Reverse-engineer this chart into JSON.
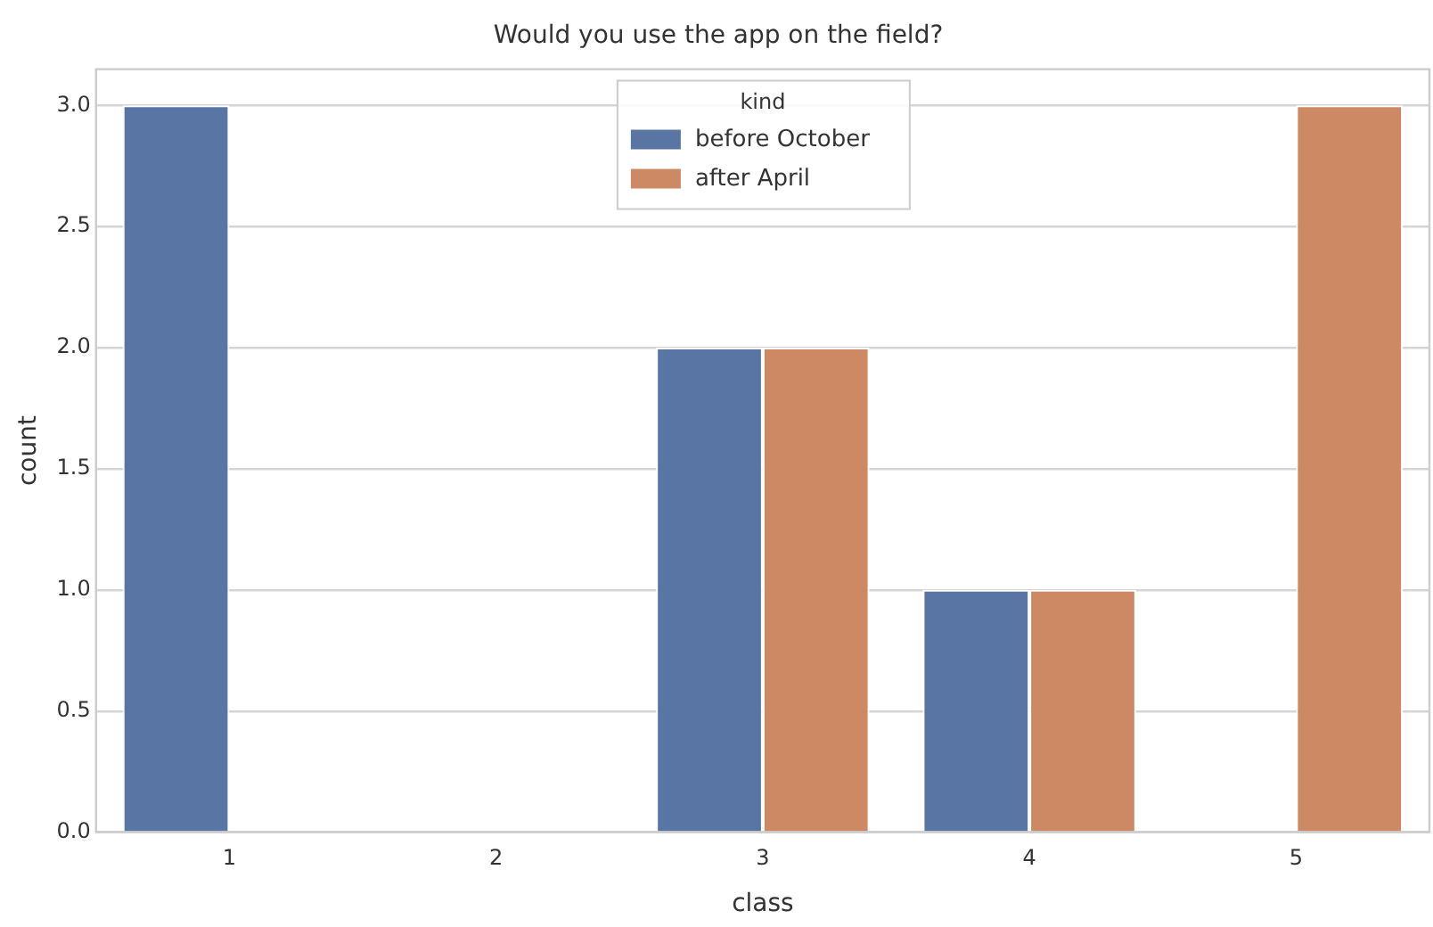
{
  "chart_data": {
    "type": "bar",
    "title": "Would you use the app on the field?",
    "xlabel": "class",
    "ylabel": "count",
    "legend_title": "kind",
    "categories": [
      "1",
      "2",
      "3",
      "4",
      "5"
    ],
    "series": [
      {
        "name": "before October",
        "color": "#5875a4",
        "values": [
          3,
          0,
          2,
          1,
          0
        ]
      },
      {
        "name": "after April",
        "color": "#cc8963",
        "values": [
          0,
          0,
          2,
          1,
          3
        ]
      }
    ],
    "ylim": [
      0,
      3.15
    ],
    "yticks": [
      {
        "value": 0,
        "label": "0.0"
      },
      {
        "value": 0.5,
        "label": "0.5"
      },
      {
        "value": 1,
        "label": "1.0"
      },
      {
        "value": 1.5,
        "label": "1.5"
      },
      {
        "value": 2,
        "label": "2.0"
      },
      {
        "value": 2.5,
        "label": "2.5"
      },
      {
        "value": 3,
        "label": "3.0"
      }
    ],
    "grid": "y",
    "legend": "top"
  }
}
